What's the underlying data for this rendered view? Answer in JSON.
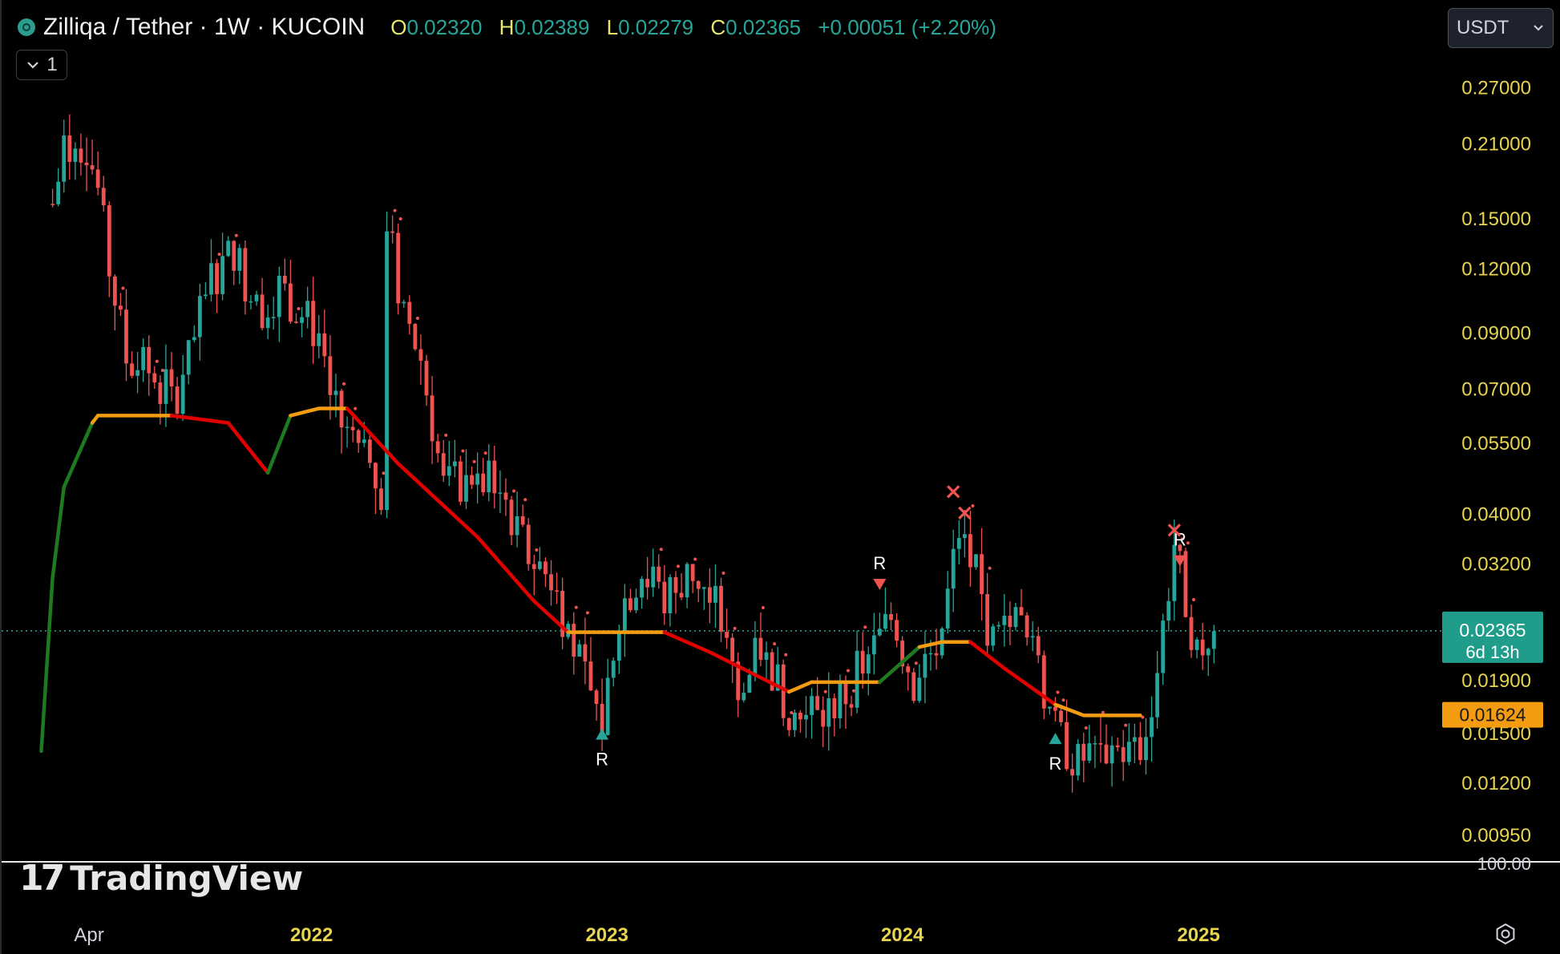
{
  "header": {
    "pair": "Zilliqa / Tether · 1W · KUCOIN",
    "open_key": "O",
    "open": "0.02320",
    "high_key": "H",
    "high": "0.02389",
    "low_key": "L",
    "low": "0.02279",
    "close_key": "C",
    "close": "0.02365",
    "change": "+0.00051 (+2.20%)"
  },
  "indicator_toggle": {
    "count": "1"
  },
  "currency": {
    "selected": "USDT"
  },
  "branding": {
    "logo_mark": "17",
    "logo_text": "TradingView"
  },
  "icons": {
    "logo": "zilliqa-coin-icon",
    "collapse": "chevron-down-icon",
    "dropdown": "chevron-down-icon",
    "settings": "gear-icon"
  },
  "colors": {
    "background": "#000000",
    "up": "#26a69a",
    "down": "#ef5350",
    "trail_up": "#1e7a1e",
    "trail_down": "#e00000",
    "trail_flat": "#f39c12",
    "axis_text": "#e8d44d",
    "price_badge": "#1f9c8a",
    "level_badge": "#f39c12"
  },
  "chart_data": {
    "type": "candlestick",
    "scale": "log",
    "y_ticks": [
      "0.27000",
      "0.21000",
      "0.15000",
      "0.12000",
      "0.09000",
      "0.07000",
      "0.05500",
      "0.04000",
      "0.03200",
      "0.01900",
      "0.01500",
      "0.01200",
      "0.00950"
    ],
    "y_tick_values": [
      0.27,
      0.21,
      0.15,
      0.12,
      0.09,
      0.07,
      0.055,
      0.04,
      0.032,
      0.019,
      0.015,
      0.012,
      0.0095
    ],
    "pane_label": "100.00",
    "x_ticks": [
      "Apr",
      "2022",
      "2023",
      "2024",
      "2025"
    ],
    "x_tick_dates": [
      "2021-04-01",
      "2022-01-01",
      "2023-01-01",
      "2024-01-01",
      "2025-01-01"
    ],
    "x_range": [
      "2020-12-14",
      "2025-10-28"
    ],
    "ylim": [
      0.0085,
      0.31
    ],
    "current_price": {
      "value": 0.02365,
      "label": "0.02365",
      "countdown": "6d 13h"
    },
    "level_marker": {
      "value": 0.01624,
      "label": "0.01624"
    },
    "price_anchors": [
      [
        "2021-02-15",
        0.16
      ],
      [
        "2021-03-01",
        0.2
      ],
      [
        "2021-03-29",
        0.21
      ],
      [
        "2021-04-12",
        0.17
      ],
      [
        "2021-04-26",
        0.12
      ],
      [
        "2021-05-17",
        0.08
      ],
      [
        "2021-06-14",
        0.075
      ],
      [
        "2021-07-19",
        0.065
      ],
      [
        "2021-08-30",
        0.115
      ],
      [
        "2021-09-27",
        0.13
      ],
      [
        "2021-10-25",
        0.1
      ],
      [
        "2021-11-22",
        0.11
      ],
      [
        "2022-01-03",
        0.092
      ],
      [
        "2022-01-24",
        0.065
      ],
      [
        "2022-03-07",
        0.05
      ],
      [
        "2022-03-28",
        0.045
      ],
      [
        "2022-04-04",
        0.15
      ],
      [
        "2022-04-18",
        0.11
      ],
      [
        "2022-05-16",
        0.08
      ],
      [
        "2022-06-13",
        0.045
      ],
      [
        "2022-07-18",
        0.047
      ],
      [
        "2022-08-22",
        0.045
      ],
      [
        "2022-09-26",
        0.033
      ],
      [
        "2022-10-24",
        0.03
      ],
      [
        "2022-11-21",
        0.022
      ],
      [
        "2022-12-26",
        0.0155
      ],
      [
        "2023-01-16",
        0.026
      ],
      [
        "2023-02-13",
        0.031
      ],
      [
        "2023-03-13",
        0.027
      ],
      [
        "2023-04-17",
        0.031
      ],
      [
        "2023-05-22",
        0.025
      ],
      [
        "2023-06-12",
        0.017
      ],
      [
        "2023-07-10",
        0.022
      ],
      [
        "2023-08-21",
        0.016
      ],
      [
        "2023-09-25",
        0.016
      ],
      [
        "2023-10-23",
        0.018
      ],
      [
        "2023-11-20",
        0.021
      ],
      [
        "2023-12-18",
        0.025
      ],
      [
        "2024-01-15",
        0.019
      ],
      [
        "2024-02-19",
        0.024
      ],
      [
        "2024-03-11",
        0.037
      ],
      [
        "2024-04-01",
        0.03
      ],
      [
        "2024-04-22",
        0.022
      ],
      [
        "2024-05-20",
        0.025
      ],
      [
        "2024-06-17",
        0.02
      ],
      [
        "2024-07-08",
        0.015
      ],
      [
        "2024-08-05",
        0.013
      ],
      [
        "2024-09-09",
        0.014
      ],
      [
        "2024-10-21",
        0.0135
      ],
      [
        "2024-11-11",
        0.02
      ],
      [
        "2024-12-02",
        0.035
      ],
      [
        "2024-12-16",
        0.027
      ],
      [
        "2024-12-30",
        0.0215
      ],
      [
        "2025-01-20",
        0.02365
      ]
    ],
    "trail_line": [
      [
        "2021-02-01",
        0.0138,
        "up"
      ],
      [
        "2021-02-15",
        0.03,
        "up"
      ],
      [
        "2021-03-01",
        0.045,
        "up"
      ],
      [
        "2021-04-05",
        0.06,
        "up"
      ],
      [
        "2021-04-12",
        0.062,
        "flat"
      ],
      [
        "2021-07-12",
        0.062,
        "flat"
      ],
      [
        "2021-09-20",
        0.06,
        "down"
      ],
      [
        "2021-11-08",
        0.048,
        "down"
      ],
      [
        "2021-12-06",
        0.062,
        "up"
      ],
      [
        "2022-01-10",
        0.064,
        "flat"
      ],
      [
        "2022-02-14",
        0.064,
        "flat"
      ],
      [
        "2022-04-18",
        0.05,
        "down"
      ],
      [
        "2022-07-25",
        0.036,
        "down"
      ],
      [
        "2022-10-03",
        0.027,
        "down"
      ],
      [
        "2022-11-14",
        0.0235,
        "down"
      ],
      [
        "2023-01-09",
        0.0235,
        "flat"
      ],
      [
        "2023-03-13",
        0.0235,
        "flat"
      ],
      [
        "2023-05-08",
        0.0215,
        "down"
      ],
      [
        "2023-08-14",
        0.018,
        "down"
      ],
      [
        "2023-09-11",
        0.0188,
        "flat"
      ],
      [
        "2023-12-04",
        0.0188,
        "flat"
      ],
      [
        "2024-01-22",
        0.022,
        "up"
      ],
      [
        "2024-02-19",
        0.0225,
        "flat"
      ],
      [
        "2024-03-25",
        0.0225,
        "flat"
      ],
      [
        "2024-05-06",
        0.02,
        "down"
      ],
      [
        "2024-07-08",
        0.017,
        "down"
      ],
      [
        "2024-08-12",
        0.0162,
        "flat"
      ],
      [
        "2024-10-21",
        0.0162,
        "flat"
      ]
    ],
    "signals": [
      {
        "type": "buy",
        "date": "2022-12-26",
        "price": 0.0155,
        "label": "R"
      },
      {
        "type": "sell",
        "date": "2023-12-04",
        "price": 0.027,
        "label": "R"
      },
      {
        "type": "buy",
        "date": "2024-07-08",
        "price": 0.0152,
        "label": "R"
      },
      {
        "type": "sell",
        "date": "2024-12-09",
        "price": 0.03,
        "label": "R"
      },
      {
        "type": "cross",
        "date": "2024-03-04",
        "price": 0.044
      },
      {
        "type": "cross",
        "date": "2024-03-18",
        "price": 0.04
      },
      {
        "type": "cross",
        "date": "2024-12-02",
        "price": 0.037
      }
    ]
  }
}
